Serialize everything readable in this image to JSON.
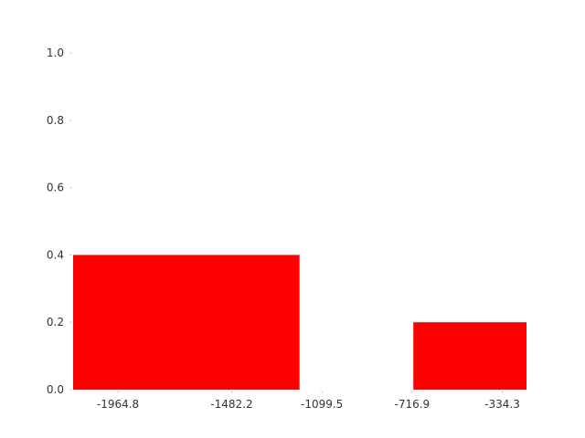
{
  "chart_data": {
    "type": "bar",
    "bar_color": "#ff0000",
    "categories": [
      "-1964.8",
      "-1482.2",
      "-1099.5",
      "-716.9",
      "-334.3"
    ],
    "bars": [
      {
        "x_start": -2155.0,
        "x_end": -1194.6,
        "value": 0.4
      },
      {
        "x_start": -711.7,
        "x_end": -231.5,
        "value": 0.2
      }
    ],
    "x_ticks": [
      -1964.8,
      -1482.2,
      -1099.5,
      -716.9,
      -334.3
    ],
    "xlim": [
      -2155.0,
      -231.5
    ],
    "y_ticks": [
      "0.0",
      "0.2",
      "0.4",
      "0.6",
      "0.8",
      "1.0"
    ],
    "ylim": [
      0.0,
      1.0
    ],
    "grid": false,
    "title": "",
    "xlabel": "",
    "ylabel": ""
  }
}
